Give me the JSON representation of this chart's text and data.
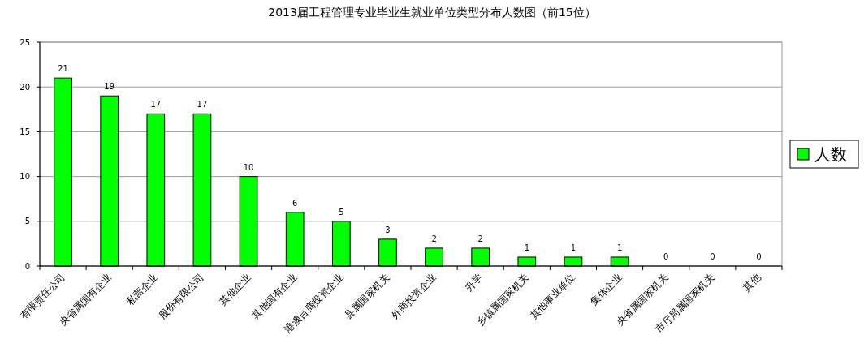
{
  "chart_data": {
    "type": "bar",
    "title": "2013届工程管理专业毕业生就业单位类型分布人数图（前15位）",
    "categories": [
      "有限责任公司",
      "央省属国有企业",
      "私营企业",
      "股份有限公司",
      "其他企业",
      "其他国有企业",
      "港澳台商投资企业",
      "县属国家机关",
      "外商投资企业",
      "升学",
      "乡镇属国家机关",
      "其他事业单位",
      "集体企业",
      "央省属国家机关",
      "市厅局属国家机关",
      "其他"
    ],
    "series": [
      {
        "name": "人数",
        "color": "#00ff00",
        "values": [
          21,
          19,
          17,
          17,
          10,
          6,
          5,
          3,
          2,
          2,
          1,
          1,
          1,
          0,
          0,
          0
        ]
      }
    ],
    "ylim": [
      0,
      25
    ],
    "yticks": [
      0,
      5,
      10,
      15,
      20,
      25
    ],
    "grid": "y",
    "legend": "right",
    "data_labels": true
  }
}
